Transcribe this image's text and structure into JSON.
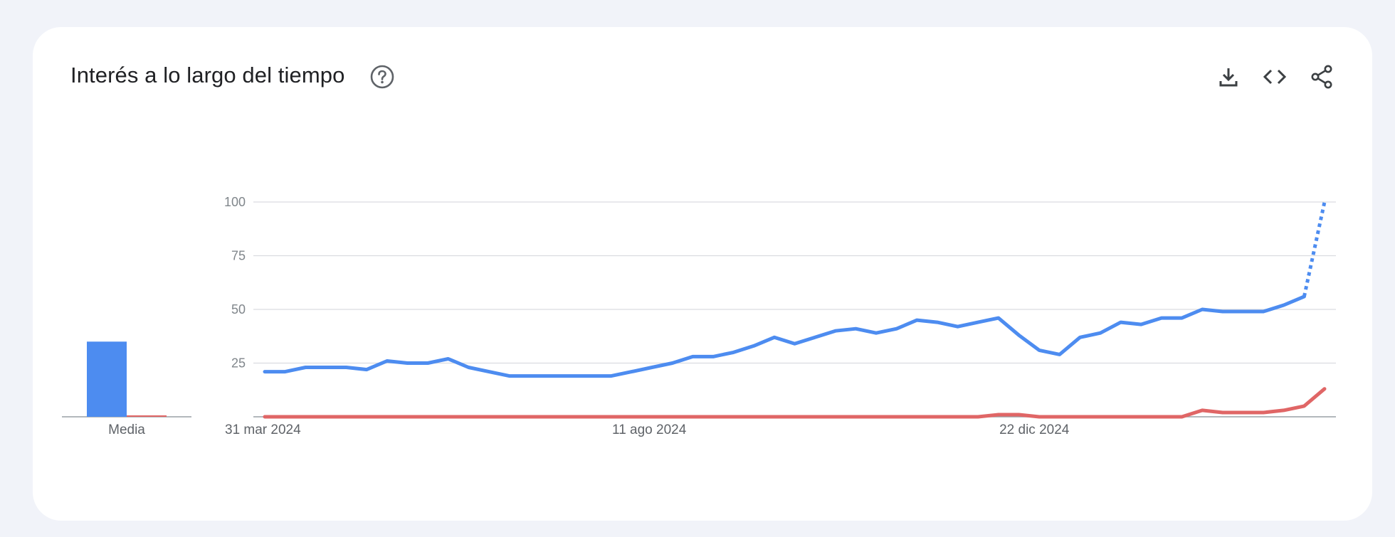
{
  "header": {
    "title": "Interés a lo largo del tiempo",
    "help_icon": "help-circle-icon"
  },
  "toolbar": {
    "download_icon": "download-icon",
    "embed_icon": "code-icon",
    "share_icon": "share-icon"
  },
  "colors": {
    "series_1": "#4d8cf0",
    "series_2": "#e06666",
    "grid": "#dadce0",
    "axis": "#9aa0a6"
  },
  "chart_data": {
    "type": "line",
    "ylim": [
      0,
      100
    ],
    "y_ticks": [
      25,
      50,
      75,
      100
    ],
    "x_tick_labels": [
      "31 mar 2024",
      "11 ago 2024",
      "22 dic 2024"
    ],
    "x_tick_index": [
      0,
      19,
      38
    ],
    "series": [
      {
        "values": [
          21,
          21,
          23,
          23,
          23,
          22,
          26,
          25,
          25,
          27,
          23,
          21,
          19,
          19,
          19,
          19,
          19,
          19,
          21,
          23,
          25,
          28,
          28,
          30,
          33,
          37,
          34,
          37,
          40,
          41,
          39,
          41,
          45,
          44,
          42,
          44,
          46,
          38,
          31,
          29,
          37,
          39,
          44,
          43,
          46,
          46,
          50,
          49,
          49,
          49,
          52,
          56,
          100
        ],
        "partial_from_index": 51
      },
      {
        "values": [
          0,
          0,
          0,
          0,
          0,
          0,
          0,
          0,
          0,
          0,
          0,
          0,
          0,
          0,
          0,
          0,
          0,
          0,
          0,
          0,
          0,
          0,
          0,
          0,
          0,
          0,
          0,
          0,
          0,
          0,
          0,
          0,
          0,
          0,
          0,
          0,
          1,
          1,
          0,
          0,
          0,
          0,
          0,
          0,
          0,
          0,
          3,
          2,
          2,
          2,
          3,
          5,
          13
        ]
      }
    ],
    "average": {
      "label": "Media",
      "values": [
        35,
        0
      ]
    }
  }
}
